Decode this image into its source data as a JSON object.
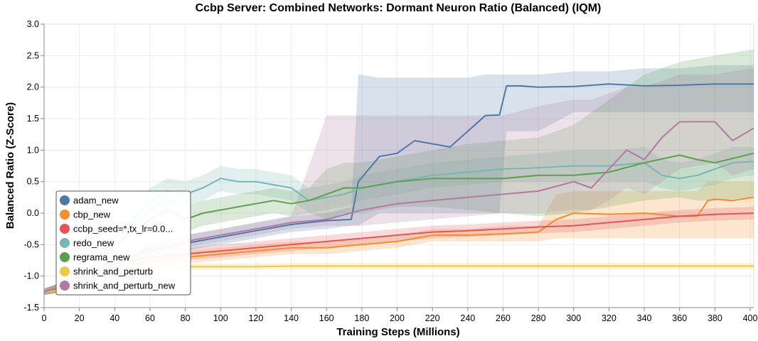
{
  "chart_data": {
    "type": "line",
    "title": "Ccbp Server: Combined Networks: Dormant Neuron Ratio (Balanced) (IQM)",
    "xlabel": "Training Steps (Millions)",
    "ylabel": "Balanced Ratio (Z-Score)",
    "xlim": [
      0,
      402
    ],
    "ylim": [
      -1.5,
      3.0
    ],
    "x_ticks": [
      "0",
      "20",
      "40",
      "60",
      "80",
      "100",
      "120",
      "140",
      "160",
      "180",
      "200",
      "220",
      "240",
      "260",
      "280",
      "300",
      "320",
      "340",
      "360",
      "380",
      "400"
    ],
    "y_ticks": [
      "3.0",
      "2.5",
      "2.0",
      "1.5",
      "1.0",
      "0.5",
      "0.0",
      "-0.5",
      "-1.0",
      "-1.5"
    ],
    "grid": true,
    "legend_position": "bottom-left",
    "series": [
      {
        "name": "adam_new",
        "color": "#4e79a7",
        "x": [
          0,
          20,
          40,
          60,
          80,
          100,
          120,
          140,
          160,
          174,
          178,
          190,
          200,
          210,
          220,
          230,
          240,
          250,
          258,
          262,
          270,
          280,
          300,
          320,
          340,
          360,
          380,
          402
        ],
        "y": [
          -1.25,
          -1.1,
          -0.8,
          -0.6,
          -0.48,
          -0.38,
          -0.28,
          -0.18,
          -0.12,
          -0.1,
          0.5,
          0.9,
          0.95,
          1.15,
          1.1,
          1.05,
          1.3,
          1.55,
          1.56,
          2.02,
          2.02,
          2.0,
          2.01,
          2.05,
          2.02,
          2.03,
          2.05,
          2.05
        ],
        "lo": [
          -1.3,
          -1.2,
          -0.9,
          -0.7,
          -0.6,
          -0.5,
          -0.4,
          -0.3,
          -0.25,
          -0.2,
          -0.2,
          0.0,
          0.0,
          0.0,
          0.0,
          0.0,
          0.0,
          0.0,
          0.0,
          1.3,
          1.3,
          1.3,
          1.6,
          1.6,
          1.6,
          1.6,
          1.6,
          1.6
        ],
        "hi": [
          -1.2,
          -1.0,
          -0.7,
          -0.5,
          -0.35,
          -0.25,
          -0.15,
          -0.05,
          0.0,
          0.1,
          2.2,
          2.15,
          2.15,
          2.15,
          2.15,
          2.15,
          2.15,
          2.2,
          2.2,
          2.2,
          2.2,
          2.2,
          2.25,
          2.25,
          2.3,
          2.3,
          2.35,
          2.35
        ]
      },
      {
        "name": "cbp_new",
        "color": "#f28e2b",
        "x": [
          0,
          20,
          40,
          60,
          80,
          100,
          120,
          140,
          160,
          180,
          200,
          220,
          240,
          260,
          280,
          290,
          300,
          320,
          340,
          360,
          370,
          376,
          380,
          390,
          402
        ],
        "y": [
          -1.25,
          -1.1,
          -0.85,
          -0.75,
          -0.7,
          -0.65,
          -0.6,
          -0.55,
          -0.55,
          -0.5,
          -0.45,
          -0.35,
          -0.35,
          -0.33,
          -0.3,
          -0.1,
          0.0,
          -0.02,
          0.0,
          -0.05,
          -0.05,
          0.2,
          0.22,
          0.2,
          0.25
        ],
        "lo": [
          -1.3,
          -1.2,
          -0.95,
          -0.85,
          -0.8,
          -0.75,
          -0.7,
          -0.65,
          -0.65,
          -0.6,
          -0.55,
          -0.45,
          -0.45,
          -0.45,
          -0.45,
          -0.4,
          -0.4,
          -0.4,
          -0.4,
          -0.4,
          -0.4,
          -0.4,
          -0.4,
          -0.4,
          -0.4
        ],
        "hi": [
          -1.2,
          -1.0,
          -0.75,
          -0.65,
          -0.6,
          -0.55,
          -0.5,
          -0.45,
          -0.45,
          -0.4,
          -0.35,
          -0.25,
          -0.25,
          -0.2,
          -0.2,
          0.3,
          0.35,
          0.35,
          0.35,
          0.35,
          0.35,
          0.5,
          0.5,
          0.5,
          0.5
        ]
      },
      {
        "name": "ccbp_seed=*,tx_lr=0.0...",
        "color": "#e15759",
        "x": [
          0,
          20,
          40,
          60,
          80,
          100,
          120,
          140,
          160,
          180,
          200,
          220,
          240,
          260,
          280,
          300,
          320,
          340,
          360,
          380,
          402
        ],
        "y": [
          -1.25,
          -1.1,
          -0.8,
          -0.7,
          -0.65,
          -0.6,
          -0.55,
          -0.5,
          -0.45,
          -0.4,
          -0.35,
          -0.3,
          -0.28,
          -0.25,
          -0.22,
          -0.2,
          -0.15,
          -0.1,
          -0.05,
          -0.02,
          0.0
        ],
        "lo": [
          -1.3,
          -1.2,
          -0.9,
          -0.8,
          -0.75,
          -0.7,
          -0.65,
          -0.6,
          -0.55,
          -0.5,
          -0.45,
          -0.4,
          -0.38,
          -0.35,
          -0.32,
          -0.3,
          -0.25,
          -0.2,
          -0.15,
          -0.12,
          -0.1
        ],
        "hi": [
          -1.2,
          -1.0,
          -0.7,
          -0.6,
          -0.55,
          -0.5,
          -0.45,
          -0.4,
          -0.35,
          -0.3,
          -0.25,
          -0.2,
          -0.18,
          -0.15,
          -0.12,
          -0.1,
          -0.05,
          0.0,
          0.05,
          0.08,
          0.1
        ]
      },
      {
        "name": "redo_new",
        "color": "#76b7b2",
        "x": [
          0,
          20,
          40,
          60,
          70,
          80,
          90,
          100,
          110,
          120,
          130,
          140,
          150,
          160,
          170,
          180,
          190,
          200,
          220,
          240,
          260,
          280,
          300,
          320,
          340,
          350,
          360,
          370,
          380,
          390,
          402
        ],
        "y": [
          -1.25,
          -1.1,
          -0.4,
          0.2,
          0.35,
          0.3,
          0.4,
          0.55,
          0.5,
          0.5,
          0.45,
          0.4,
          0.2,
          0.25,
          0.3,
          0.4,
          0.45,
          0.5,
          0.6,
          0.65,
          0.7,
          0.72,
          0.75,
          0.75,
          0.8,
          0.6,
          0.55,
          0.6,
          0.7,
          0.8,
          0.82
        ],
        "lo": [
          -1.3,
          -1.2,
          -0.6,
          0.0,
          0.15,
          0.1,
          0.2,
          0.35,
          0.3,
          0.3,
          0.25,
          0.2,
          0.0,
          0.05,
          0.1,
          0.2,
          0.25,
          0.3,
          0.4,
          0.45,
          0.5,
          0.5,
          0.5,
          0.5,
          0.5,
          0.4,
          0.35,
          0.4,
          0.45,
          0.55,
          0.6
        ],
        "hi": [
          -1.2,
          -1.0,
          -0.2,
          0.4,
          0.55,
          0.5,
          0.6,
          0.75,
          0.7,
          0.7,
          0.65,
          0.6,
          0.4,
          0.45,
          0.5,
          0.6,
          0.65,
          0.7,
          0.8,
          0.85,
          0.9,
          0.95,
          1.0,
          1.0,
          1.05,
          0.85,
          0.8,
          0.85,
          0.95,
          1.05,
          1.05
        ]
      },
      {
        "name": "regrama_new",
        "color": "#59a14f",
        "x": [
          0,
          20,
          40,
          60,
          70,
          80,
          90,
          100,
          110,
          120,
          130,
          140,
          150,
          160,
          170,
          180,
          200,
          220,
          240,
          260,
          280,
          300,
          320,
          340,
          360,
          370,
          380,
          402
        ],
        "y": [
          -1.25,
          -1.1,
          -0.5,
          -0.1,
          0.05,
          -0.1,
          0.0,
          0.05,
          0.1,
          0.15,
          0.2,
          0.15,
          0.2,
          0.3,
          0.4,
          0.4,
          0.5,
          0.55,
          0.55,
          0.55,
          0.6,
          0.6,
          0.65,
          0.8,
          0.92,
          0.85,
          0.8,
          0.95
        ],
        "lo": [
          -1.3,
          -1.2,
          -0.7,
          -0.3,
          -0.15,
          -0.3,
          -0.2,
          -0.15,
          -0.1,
          -0.05,
          0.0,
          -0.05,
          0.0,
          -0.1,
          0.0,
          0.0,
          0.1,
          0.1,
          0.05,
          0.0,
          -0.05,
          0.0,
          0.1,
          0.2,
          0.25,
          0.2,
          0.2,
          0.25
        ],
        "hi": [
          -1.2,
          -1.0,
          -0.3,
          0.1,
          0.25,
          0.1,
          0.2,
          0.25,
          0.3,
          0.35,
          0.4,
          0.35,
          0.4,
          0.7,
          0.8,
          0.8,
          0.9,
          1.0,
          1.1,
          1.15,
          1.2,
          1.4,
          1.8,
          2.2,
          2.4,
          2.45,
          2.5,
          2.6
        ]
      },
      {
        "name": "shrink_and_perturb",
        "color": "#edc948",
        "x": [
          0,
          20,
          40,
          60,
          80,
          100,
          120,
          140,
          160,
          180,
          200,
          220,
          240,
          260,
          280,
          300,
          320,
          340,
          360,
          380,
          402
        ],
        "y": [
          -1.25,
          -1.2,
          -0.9,
          -0.85,
          -0.85,
          -0.85,
          -0.85,
          -0.84,
          -0.84,
          -0.84,
          -0.84,
          -0.84,
          -0.84,
          -0.84,
          -0.84,
          -0.84,
          -0.84,
          -0.84,
          -0.84,
          -0.84,
          -0.84
        ],
        "lo": [
          -1.3,
          -1.25,
          -0.95,
          -0.9,
          -0.9,
          -0.9,
          -0.9,
          -0.89,
          -0.89,
          -0.89,
          -0.89,
          -0.89,
          -0.89,
          -0.89,
          -0.89,
          -0.89,
          -0.89,
          -0.89,
          -0.89,
          -0.89,
          -0.89
        ],
        "hi": [
          -1.2,
          -1.15,
          -0.85,
          -0.8,
          -0.8,
          -0.8,
          -0.8,
          -0.79,
          -0.79,
          -0.79,
          -0.79,
          -0.79,
          -0.79,
          -0.79,
          -0.79,
          -0.79,
          -0.79,
          -0.79,
          -0.79,
          -0.79,
          -0.79
        ]
      },
      {
        "name": "shrink_and_perturb_new",
        "color": "#b07aa1",
        "x": [
          0,
          20,
          40,
          60,
          80,
          100,
          120,
          140,
          160,
          180,
          200,
          220,
          240,
          260,
          280,
          300,
          310,
          320,
          330,
          340,
          350,
          360,
          380,
          390,
          402
        ],
        "y": [
          -1.25,
          -1.1,
          -0.8,
          -0.55,
          -0.45,
          -0.35,
          -0.25,
          -0.15,
          -0.1,
          0.05,
          0.15,
          0.2,
          0.25,
          0.3,
          0.35,
          0.5,
          0.4,
          0.7,
          1.0,
          0.85,
          1.2,
          1.45,
          1.45,
          1.15,
          1.35
        ],
        "lo": [
          -1.3,
          -1.2,
          -0.9,
          -0.65,
          -0.55,
          -0.45,
          -0.35,
          -0.25,
          -0.2,
          -0.2,
          -0.15,
          -0.1,
          -0.05,
          0.0,
          0.0,
          0.05,
          0.05,
          0.2,
          0.4,
          0.3,
          0.5,
          0.7,
          0.8,
          0.6,
          0.7
        ],
        "hi": [
          -1.2,
          -1.0,
          -0.7,
          -0.45,
          -0.35,
          -0.25,
          -0.15,
          -0.05,
          1.55,
          1.55,
          1.55,
          1.55,
          1.55,
          1.55,
          1.7,
          1.8,
          1.8,
          1.9,
          2.0,
          2.0,
          2.1,
          2.2,
          2.2,
          2.25,
          2.3
        ]
      }
    ]
  }
}
